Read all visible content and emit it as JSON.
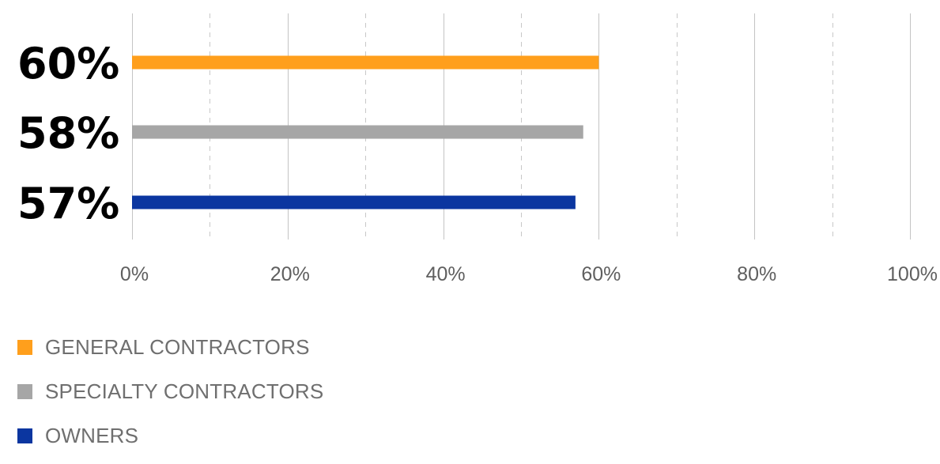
{
  "chart_data": {
    "type": "bar",
    "orientation": "horizontal",
    "xlim": [
      0,
      100
    ],
    "grid": true,
    "legend_position": "bottom-left",
    "x_ticks": [
      {
        "value": 0,
        "label": "0%"
      },
      {
        "value": 20,
        "label": "20%"
      },
      {
        "value": 40,
        "label": "40%"
      },
      {
        "value": 60,
        "label": "60%"
      },
      {
        "value": 80,
        "label": "80%"
      },
      {
        "value": 100,
        "label": "100%"
      }
    ],
    "minor_gridlines": [
      10,
      30,
      50,
      70,
      90
    ],
    "series": [
      {
        "name": "GENERAL CONTRACTORS",
        "value": 60,
        "label": "60%",
        "color": "#ff9f1c"
      },
      {
        "name": "SPECIALTY CONTRACTORS",
        "value": 58,
        "label": "58%",
        "color": "#a6a6a6"
      },
      {
        "name": "OWNERS",
        "value": 57,
        "label": "57%",
        "color": "#0b36a0"
      }
    ]
  }
}
